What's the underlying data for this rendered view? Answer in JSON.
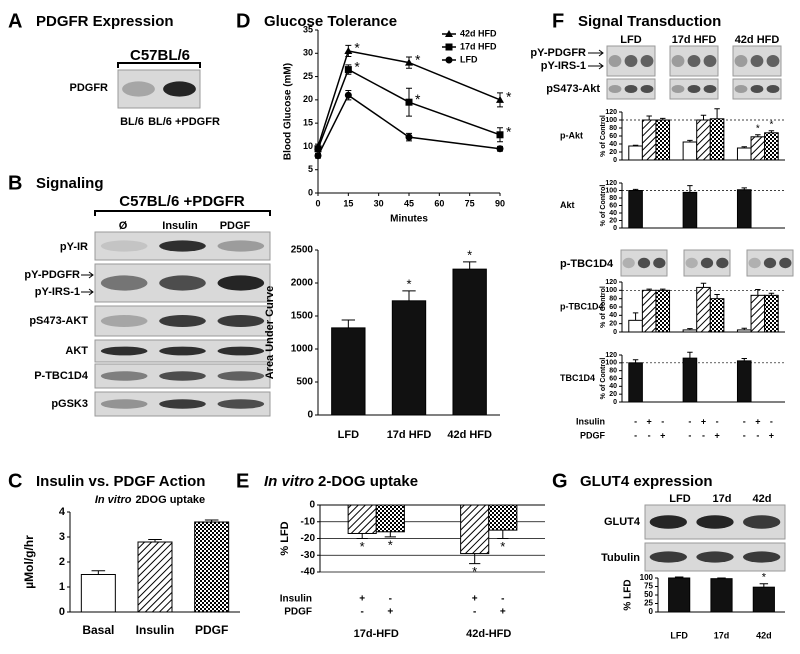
{
  "panels": {
    "A": {
      "letter": "A",
      "title": "PDGFR Expression",
      "header": "C57BL/6",
      "rows": [
        "PDGFR"
      ],
      "lanes": [
        "BL/6",
        "BL/6 +PDGFR"
      ]
    },
    "B": {
      "letter": "B",
      "title": "Signaling",
      "header": "C57BL/6 +PDGFR",
      "lanes": [
        "Ø",
        "Insulin",
        "PDGF"
      ],
      "rows": [
        "pY-IR",
        "pY-PDGFR",
        "pY-IRS-1",
        "pS473-AKT",
        "AKT",
        "P-TBC1D4",
        "pGSK3"
      ]
    },
    "C": {
      "letter": "C"
    },
    "D": {
      "letter": "D"
    },
    "E": {
      "letter": "E"
    },
    "F": {
      "letter": "F",
      "title": "Signal Transduction",
      "lanes": [
        "LFD",
        "17d HFD",
        "42d HFD"
      ],
      "rows": [
        "pY-PDGFR",
        "pY-IRS-1",
        "pS473-Akt"
      ],
      "blot_row": "p-TBC1D4"
    },
    "G": {
      "letter": "G",
      "title": "GLUT4 expression",
      "lanes": [
        "LFD",
        "17d",
        "42d"
      ],
      "rows": [
        "GLUT4",
        "Tubulin"
      ]
    }
  },
  "chart_data": [
    {
      "type": "bar",
      "title": "Insulin vs. PDGF Action",
      "subtitle_italic": "In vitro",
      "subtitle": "2DOG uptake",
      "y_label": "µMol/g/hr",
      "categories": [
        "Basal",
        "Insulin",
        "PDGF"
      ],
      "values": [
        1.5,
        2.8,
        3.6
      ],
      "errors": [
        0.15,
        0.1,
        0.08
      ],
      "fills": [
        "white",
        "hatch",
        "cross"
      ],
      "ylim": [
        0,
        4
      ],
      "yticks": [
        0,
        1,
        2,
        3,
        4
      ],
      "grid": false
    },
    {
      "type": "line",
      "title": "Glucose Tolerance",
      "y_label": "Blood Glucose (mM)",
      "x_label": "Minutes",
      "x": [
        0,
        15,
        45,
        90
      ],
      "xlim": [
        0,
        90
      ],
      "xticks": [
        0,
        15,
        30,
        45,
        60,
        75,
        90
      ],
      "ylim": [
        0,
        35
      ],
      "yticks": [
        0,
        5,
        10,
        15,
        20,
        25,
        30,
        35
      ],
      "legend": "upper right",
      "series": [
        {
          "name": "42d HFD",
          "marker": "triangle",
          "color": "#000",
          "values": [
            10,
            30.5,
            28,
            20
          ],
          "errors": [
            0.5,
            1.2,
            1.2,
            1.5
          ],
          "significance": [
            null,
            "*",
            "*",
            "*"
          ]
        },
        {
          "name": "17d HFD",
          "marker": "square",
          "color": "#000",
          "values": [
            9.5,
            26.5,
            19.5,
            12.5
          ],
          "errors": [
            0.5,
            1,
            3,
            1.5
          ],
          "significance": [
            null,
            "*",
            "*",
            "*"
          ]
        },
        {
          "name": "LFD",
          "marker": "circle",
          "color": "#000",
          "values": [
            8,
            21,
            12,
            9.5
          ],
          "errors": [
            0.5,
            1,
            0.8,
            0.5
          ]
        }
      ]
    },
    {
      "type": "bar",
      "y_label": "Area Under Curve",
      "categories": [
        "LFD",
        "17d HFD",
        "42d HFD"
      ],
      "values": [
        1320,
        1730,
        2210
      ],
      "errors": [
        120,
        150,
        110
      ],
      "significance": [
        null,
        "*",
        "*"
      ],
      "fills": [
        "black"
      ],
      "ylim": [
        0,
        2500
      ],
      "yticks": [
        0,
        500,
        1000,
        1500,
        2000,
        2500
      ],
      "grid": false
    },
    {
      "type": "bar",
      "title_italic": "In vitro",
      "title": "2-DOG uptake",
      "y_label": "% LFD",
      "categories": [
        "17d-HFD",
        "42d-HFD"
      ],
      "series": [
        {
          "fill": "hatch",
          "values": [
            -17,
            -29
          ],
          "errors": [
            3,
            6
          ],
          "significance": [
            "*",
            "*"
          ]
        },
        {
          "fill": "cross",
          "values": [
            -16,
            -15
          ],
          "errors": [
            3,
            5
          ],
          "significance": [
            "*",
            "*"
          ]
        }
      ],
      "treatments": [
        {
          "label": "Insulin",
          "signs": [
            "+",
            "-",
            "+",
            "-"
          ]
        },
        {
          "label": "PDGF",
          "signs": [
            "-",
            "+",
            "-",
            "+"
          ]
        }
      ],
      "ylim": [
        -40,
        0
      ],
      "yticks": [
        -40,
        -30,
        -20,
        -10,
        0
      ],
      "grid": true
    },
    {
      "type": "bar",
      "title": "p-Akt",
      "y_label": "% of Control",
      "reference_line": 100,
      "series": [
        {
          "fill": "white",
          "values": [
            35,
            45,
            30
          ],
          "errors": [
            2,
            4,
            3
          ]
        },
        {
          "fill": "hatch",
          "values": [
            100,
            100,
            58
          ],
          "errors": [
            10,
            12,
            5
          ],
          "significance": [
            null,
            null,
            "*"
          ]
        },
        {
          "fill": "cross",
          "values": [
            100,
            103,
            68
          ],
          "errors": [
            4,
            25,
            5
          ],
          "significance": [
            null,
            null,
            "*"
          ]
        }
      ],
      "ylim": [
        0,
        120
      ],
      "yticks": [
        0,
        20,
        40,
        60,
        80,
        100,
        120
      ],
      "grid": false
    },
    {
      "type": "bar",
      "title": "Akt",
      "y_label": "% of Control",
      "reference_line": 100,
      "series": [
        {
          "fill": "black",
          "values": [
            100,
            95,
            102
          ],
          "errors": [
            3,
            18,
            5
          ]
        }
      ],
      "ylim": [
        0,
        120
      ],
      "yticks": [
        0,
        20,
        40,
        60,
        80,
        100,
        120
      ],
      "grid": false
    },
    {
      "type": "bar",
      "title": "p-TBC1D4",
      "y_label": "% of Control",
      "reference_line": 100,
      "series": [
        {
          "fill": "white",
          "values": [
            28,
            5,
            5
          ],
          "errors": [
            18,
            3,
            4
          ]
        },
        {
          "fill": "hatch",
          "values": [
            100,
            107,
            88
          ],
          "errors": [
            3,
            10,
            14
          ]
        },
        {
          "fill": "cross",
          "values": [
            100,
            80,
            88
          ],
          "errors": [
            3,
            10,
            5
          ]
        }
      ],
      "ylim": [
        0,
        120
      ],
      "yticks": [
        0,
        20,
        40,
        60,
        80,
        100,
        120
      ],
      "grid": false
    },
    {
      "type": "bar",
      "title": "TBC1D4",
      "y_label": "% of Control",
      "reference_line": 100,
      "series": [
        {
          "fill": "black",
          "values": [
            100,
            112,
            105
          ],
          "errors": [
            8,
            15,
            6
          ]
        }
      ],
      "treatments": [
        {
          "label": "Insulin",
          "signs": [
            "-",
            "+",
            "-",
            "-",
            "+",
            "-",
            "-",
            "+",
            "-"
          ]
        },
        {
          "label": "PDGF",
          "signs": [
            "-",
            "-",
            "+",
            "-",
            "-",
            "+",
            "-",
            "-",
            "+"
          ]
        }
      ],
      "ylim": [
        0,
        120
      ],
      "yticks": [
        0,
        20,
        40,
        60,
        80,
        100,
        120
      ],
      "grid": false
    },
    {
      "type": "bar",
      "y_label": "% LFD",
      "categories": [
        "LFD",
        "17d",
        "42d"
      ],
      "values": [
        100,
        98,
        73
      ],
      "errors": [
        3,
        2,
        10
      ],
      "significance": [
        null,
        null,
        "*"
      ],
      "fills": [
        "black"
      ],
      "ylim": [
        0,
        100
      ],
      "yticks": [
        0,
        25,
        50,
        75,
        100
      ],
      "grid": false
    }
  ]
}
